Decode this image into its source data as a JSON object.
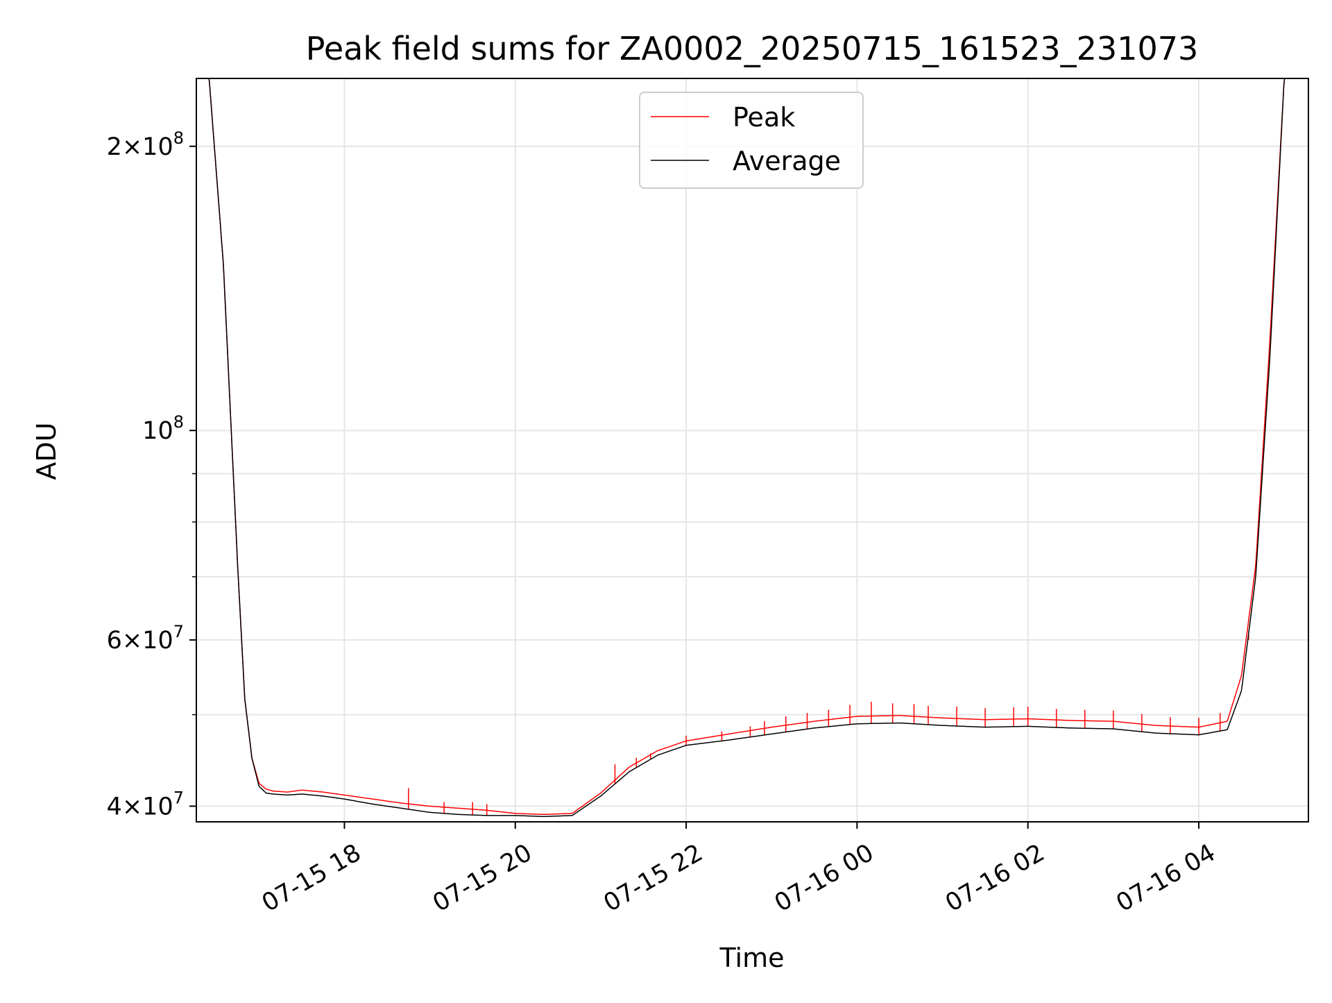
{
  "chart_data": {
    "type": "line",
    "title": "Peak field sums for ZA0002_20250715_161523_231073",
    "xlabel": "Time",
    "ylabel": "ADU",
    "yscale": "log",
    "grid": true,
    "legend_position": "upper center",
    "xlim": [
      "2025-07-15 16:16",
      "2025-07-16 05:17"
    ],
    "ylim": [
      38500000,
      236000000
    ],
    "x_ticks": [
      {
        "value": "2025-07-15 18:00",
        "label": "07-15 18"
      },
      {
        "value": "2025-07-15 20:00",
        "label": "07-15 20"
      },
      {
        "value": "2025-07-15 22:00",
        "label": "07-15 22"
      },
      {
        "value": "2025-07-16 00:00",
        "label": "07-16 00"
      },
      {
        "value": "2025-07-16 02:00",
        "label": "07-16 02"
      },
      {
        "value": "2025-07-16 04:00",
        "label": "07-16 04"
      }
    ],
    "y_ticks": [
      {
        "value": 40000000,
        "mantissa": "4",
        "exponent": "7"
      },
      {
        "value": 60000000,
        "mantissa": "6",
        "exponent": "7"
      },
      {
        "value": 100000000,
        "mantissa": "",
        "exponent": "8"
      },
      {
        "value": 200000000,
        "mantissa": "2",
        "exponent": "8"
      }
    ],
    "y_minor_ticks": [
      50000000,
      70000000,
      80000000,
      90000000
    ],
    "series": [
      {
        "name": "Peak",
        "color": "#ff0000"
      },
      {
        "name": "Average",
        "color": "#000000"
      }
    ],
    "x": [
      "2025-07-15 16:16",
      "2025-07-15 16:25",
      "2025-07-15 16:35",
      "2025-07-15 16:45",
      "2025-07-15 16:50",
      "2025-07-15 16:55",
      "2025-07-15 17:00",
      "2025-07-15 17:05",
      "2025-07-15 17:10",
      "2025-07-15 17:20",
      "2025-07-15 17:30",
      "2025-07-15 17:45",
      "2025-07-15 18:00",
      "2025-07-15 18:20",
      "2025-07-15 18:40",
      "2025-07-15 19:00",
      "2025-07-15 19:20",
      "2025-07-15 19:40",
      "2025-07-15 20:00",
      "2025-07-15 20:20",
      "2025-07-15 20:40",
      "2025-07-15 21:00",
      "2025-07-15 21:20",
      "2025-07-15 21:40",
      "2025-07-15 22:00",
      "2025-07-15 22:30",
      "2025-07-15 23:00",
      "2025-07-15 23:30",
      "2025-07-16 00:00",
      "2025-07-16 00:30",
      "2025-07-16 01:00",
      "2025-07-16 01:30",
      "2025-07-16 02:00",
      "2025-07-16 02:30",
      "2025-07-16 03:00",
      "2025-07-16 03:30",
      "2025-07-16 04:00",
      "2025-07-16 04:20",
      "2025-07-16 04:30",
      "2025-07-16 04:40",
      "2025-07-16 04:50",
      "2025-07-16 05:00",
      "2025-07-16 05:10",
      "2025-07-16 05:17"
    ],
    "average_values": [
      236000000,
      236000000,
      150000000,
      72000000,
      52000000,
      45000000,
      42000000,
      41300000,
      41200000,
      41100000,
      41200000,
      41000000,
      40700000,
      40200000,
      39800000,
      39400000,
      39200000,
      39100000,
      39100000,
      39000000,
      39100000,
      41000000,
      43500000,
      45300000,
      46400000,
      47000000,
      47700000,
      48400000,
      48900000,
      49000000,
      48700000,
      48500000,
      48600000,
      48400000,
      48300000,
      47800000,
      47600000,
      48200000,
      53000000,
      70000000,
      120000000,
      236000000,
      236000000,
      236000000
    ],
    "peak_values": [
      236000000,
      236000000,
      150000000,
      72000000,
      52000000,
      45000000,
      42300000,
      41700000,
      41500000,
      41400000,
      41600000,
      41400000,
      41100000,
      40700000,
      40300000,
      40000000,
      39800000,
      39600000,
      39300000,
      39200000,
      39300000,
      41300000,
      44000000,
      45800000,
      46900000,
      47700000,
      48500000,
      49200000,
      49800000,
      49900000,
      49600000,
      49400000,
      49500000,
      49300000,
      49200000,
      48700000,
      48500000,
      49200000,
      55000000,
      72000000,
      125000000,
      236000000,
      236000000,
      236000000
    ],
    "peak_spike_times": [
      "2025-07-15 18:45",
      "2025-07-15 19:10",
      "2025-07-15 19:30",
      "2025-07-15 19:40",
      "2025-07-15 21:10",
      "2025-07-15 21:25",
      "2025-07-15 21:35",
      "2025-07-15 22:00",
      "2025-07-15 22:25",
      "2025-07-15 22:45",
      "2025-07-15 22:55",
      "2025-07-15 23:10",
      "2025-07-15 23:25",
      "2025-07-15 23:40",
      "2025-07-15 23:55",
      "2025-07-16 00:10",
      "2025-07-16 00:25",
      "2025-07-16 00:40",
      "2025-07-16 00:50",
      "2025-07-16 01:10",
      "2025-07-16 01:30",
      "2025-07-16 01:50",
      "2025-07-16 02:00",
      "2025-07-16 02:20",
      "2025-07-16 02:40",
      "2025-07-16 03:00",
      "2025-07-16 03:20",
      "2025-07-16 03:40",
      "2025-07-16 04:00",
      "2025-07-16 04:15",
      "2025-07-16 04:35"
    ],
    "peak_spike_values": [
      41800000,
      40400000,
      40400000,
      40200000,
      44300000,
      45000000,
      45500000,
      47500000,
      48000000,
      48600000,
      49200000,
      49800000,
      50200000,
      50600000,
      51200000,
      51600000,
      51400000,
      51300000,
      51100000,
      51000000,
      50800000,
      50900000,
      51000000,
      50700000,
      50600000,
      50500000,
      50100000,
      49700000,
      49600000,
      50200000,
      60000000
    ]
  }
}
